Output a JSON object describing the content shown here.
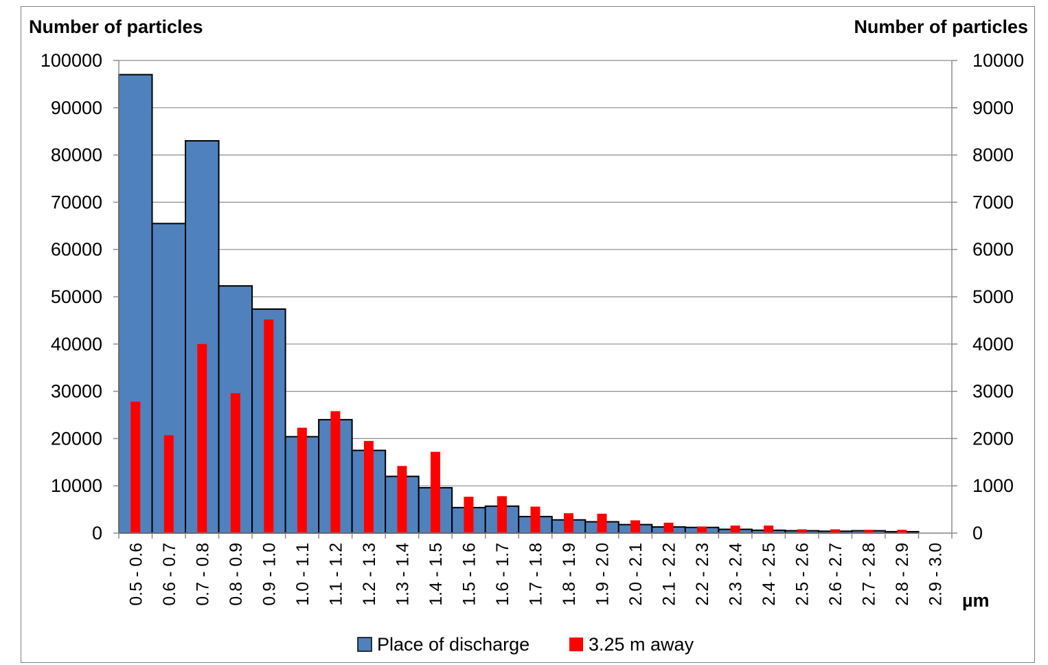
{
  "chart_data": {
    "type": "bar",
    "left_axis_title": "Number of particles",
    "right_axis_title": "Number of particles",
    "x_unit": "µm",
    "categories": [
      "0.5 - 0.6",
      "0.6 - 0.7",
      "0.7 - 0.8",
      "0.8 - 0.9",
      "0.9 - 1.0",
      "1.0 - 1.1",
      "1.1 - 1.2",
      "1.2 - 1.3",
      "1.3 - 1.4",
      "1.4 - 1.5",
      "1.5 - 1.6",
      "1.6 - 1.7",
      "1.7 - 1.8",
      "1.8 - 1.9",
      "1.9 - 2.0",
      "2.0 - 2.1",
      "2.1 - 2.2",
      "2.2 - 2.3",
      "2.3 - 2.4",
      "2.4 - 2.5",
      "2.5 - 2.6",
      "2.6 - 2.7",
      "2.7 - 2.8",
      "2.8 - 2.9",
      "2.9 - 3.0"
    ],
    "y_left": {
      "min": 0,
      "max": 100000,
      "ticks": [
        "0",
        "10000",
        "20000",
        "30000",
        "40000",
        "50000",
        "60000",
        "70000",
        "80000",
        "90000",
        "100000"
      ]
    },
    "y_right": {
      "min": 0,
      "max": 10000,
      "ticks": [
        "0",
        "1000",
        "2000",
        "3000",
        "4000",
        "5000",
        "6000",
        "7000",
        "8000",
        "9000",
        "10000"
      ]
    },
    "grid": true,
    "legend_position": "bottom",
    "series": [
      {
        "name": "Place of discharge",
        "axis": "left",
        "color": "#4f81bd",
        "values": [
          97000,
          65500,
          83000,
          52300,
          47400,
          20400,
          24000,
          17500,
          12000,
          9600,
          5400,
          5700,
          3500,
          2800,
          2400,
          1800,
          1300,
          1200,
          800,
          600,
          500,
          400,
          500,
          300,
          0
        ]
      },
      {
        "name": "3.25 m away",
        "axis": "right",
        "color": "#ff0000",
        "values": [
          2780,
          2070,
          4000,
          2960,
          4520,
          2230,
          2580,
          1950,
          1420,
          1720,
          770,
          780,
          560,
          420,
          410,
          270,
          220,
          140,
          160,
          160,
          80,
          80,
          70,
          70,
          0
        ]
      }
    ]
  }
}
